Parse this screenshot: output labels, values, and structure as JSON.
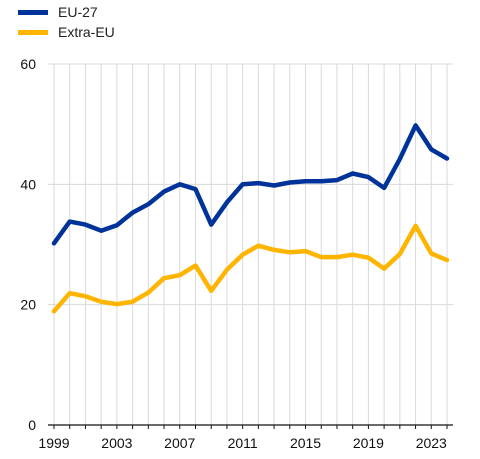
{
  "chart_data": {
    "type": "line",
    "x": [
      1999,
      2000,
      2001,
      2002,
      2003,
      2004,
      2005,
      2006,
      2007,
      2008,
      2009,
      2010,
      2011,
      2012,
      2013,
      2014,
      2015,
      2016,
      2017,
      2018,
      2019,
      2020,
      2021,
      2022,
      2023,
      2024
    ],
    "xticks": [
      "1999",
      "2003",
      "2007",
      "2011",
      "2015",
      "2019",
      "2023"
    ],
    "yticks": [
      "0",
      "20",
      "40",
      "60"
    ],
    "ylim": [
      0,
      60
    ],
    "grid": true,
    "legend_position": "top-left",
    "series": [
      {
        "name": "EU-27",
        "color": "#003399",
        "values": [
          30.2,
          33.8,
          33.3,
          32.3,
          33.2,
          35.3,
          36.7,
          38.8,
          40.0,
          39.2,
          33.3,
          37.0,
          40.0,
          40.2,
          39.8,
          40.3,
          40.5,
          40.5,
          40.7,
          41.8,
          41.2,
          39.4,
          44.2,
          49.8,
          45.8,
          44.3
        ]
      },
      {
        "name": "Extra-EU",
        "color": "#FFB400",
        "values": [
          18.9,
          21.9,
          21.4,
          20.5,
          20.1,
          20.5,
          22.0,
          24.4,
          24.9,
          26.5,
          22.3,
          25.8,
          28.3,
          29.8,
          29.1,
          28.7,
          28.9,
          27.9,
          27.9,
          28.3,
          27.8,
          26.0,
          28.4,
          33.1,
          28.5,
          27.4
        ]
      }
    ]
  }
}
